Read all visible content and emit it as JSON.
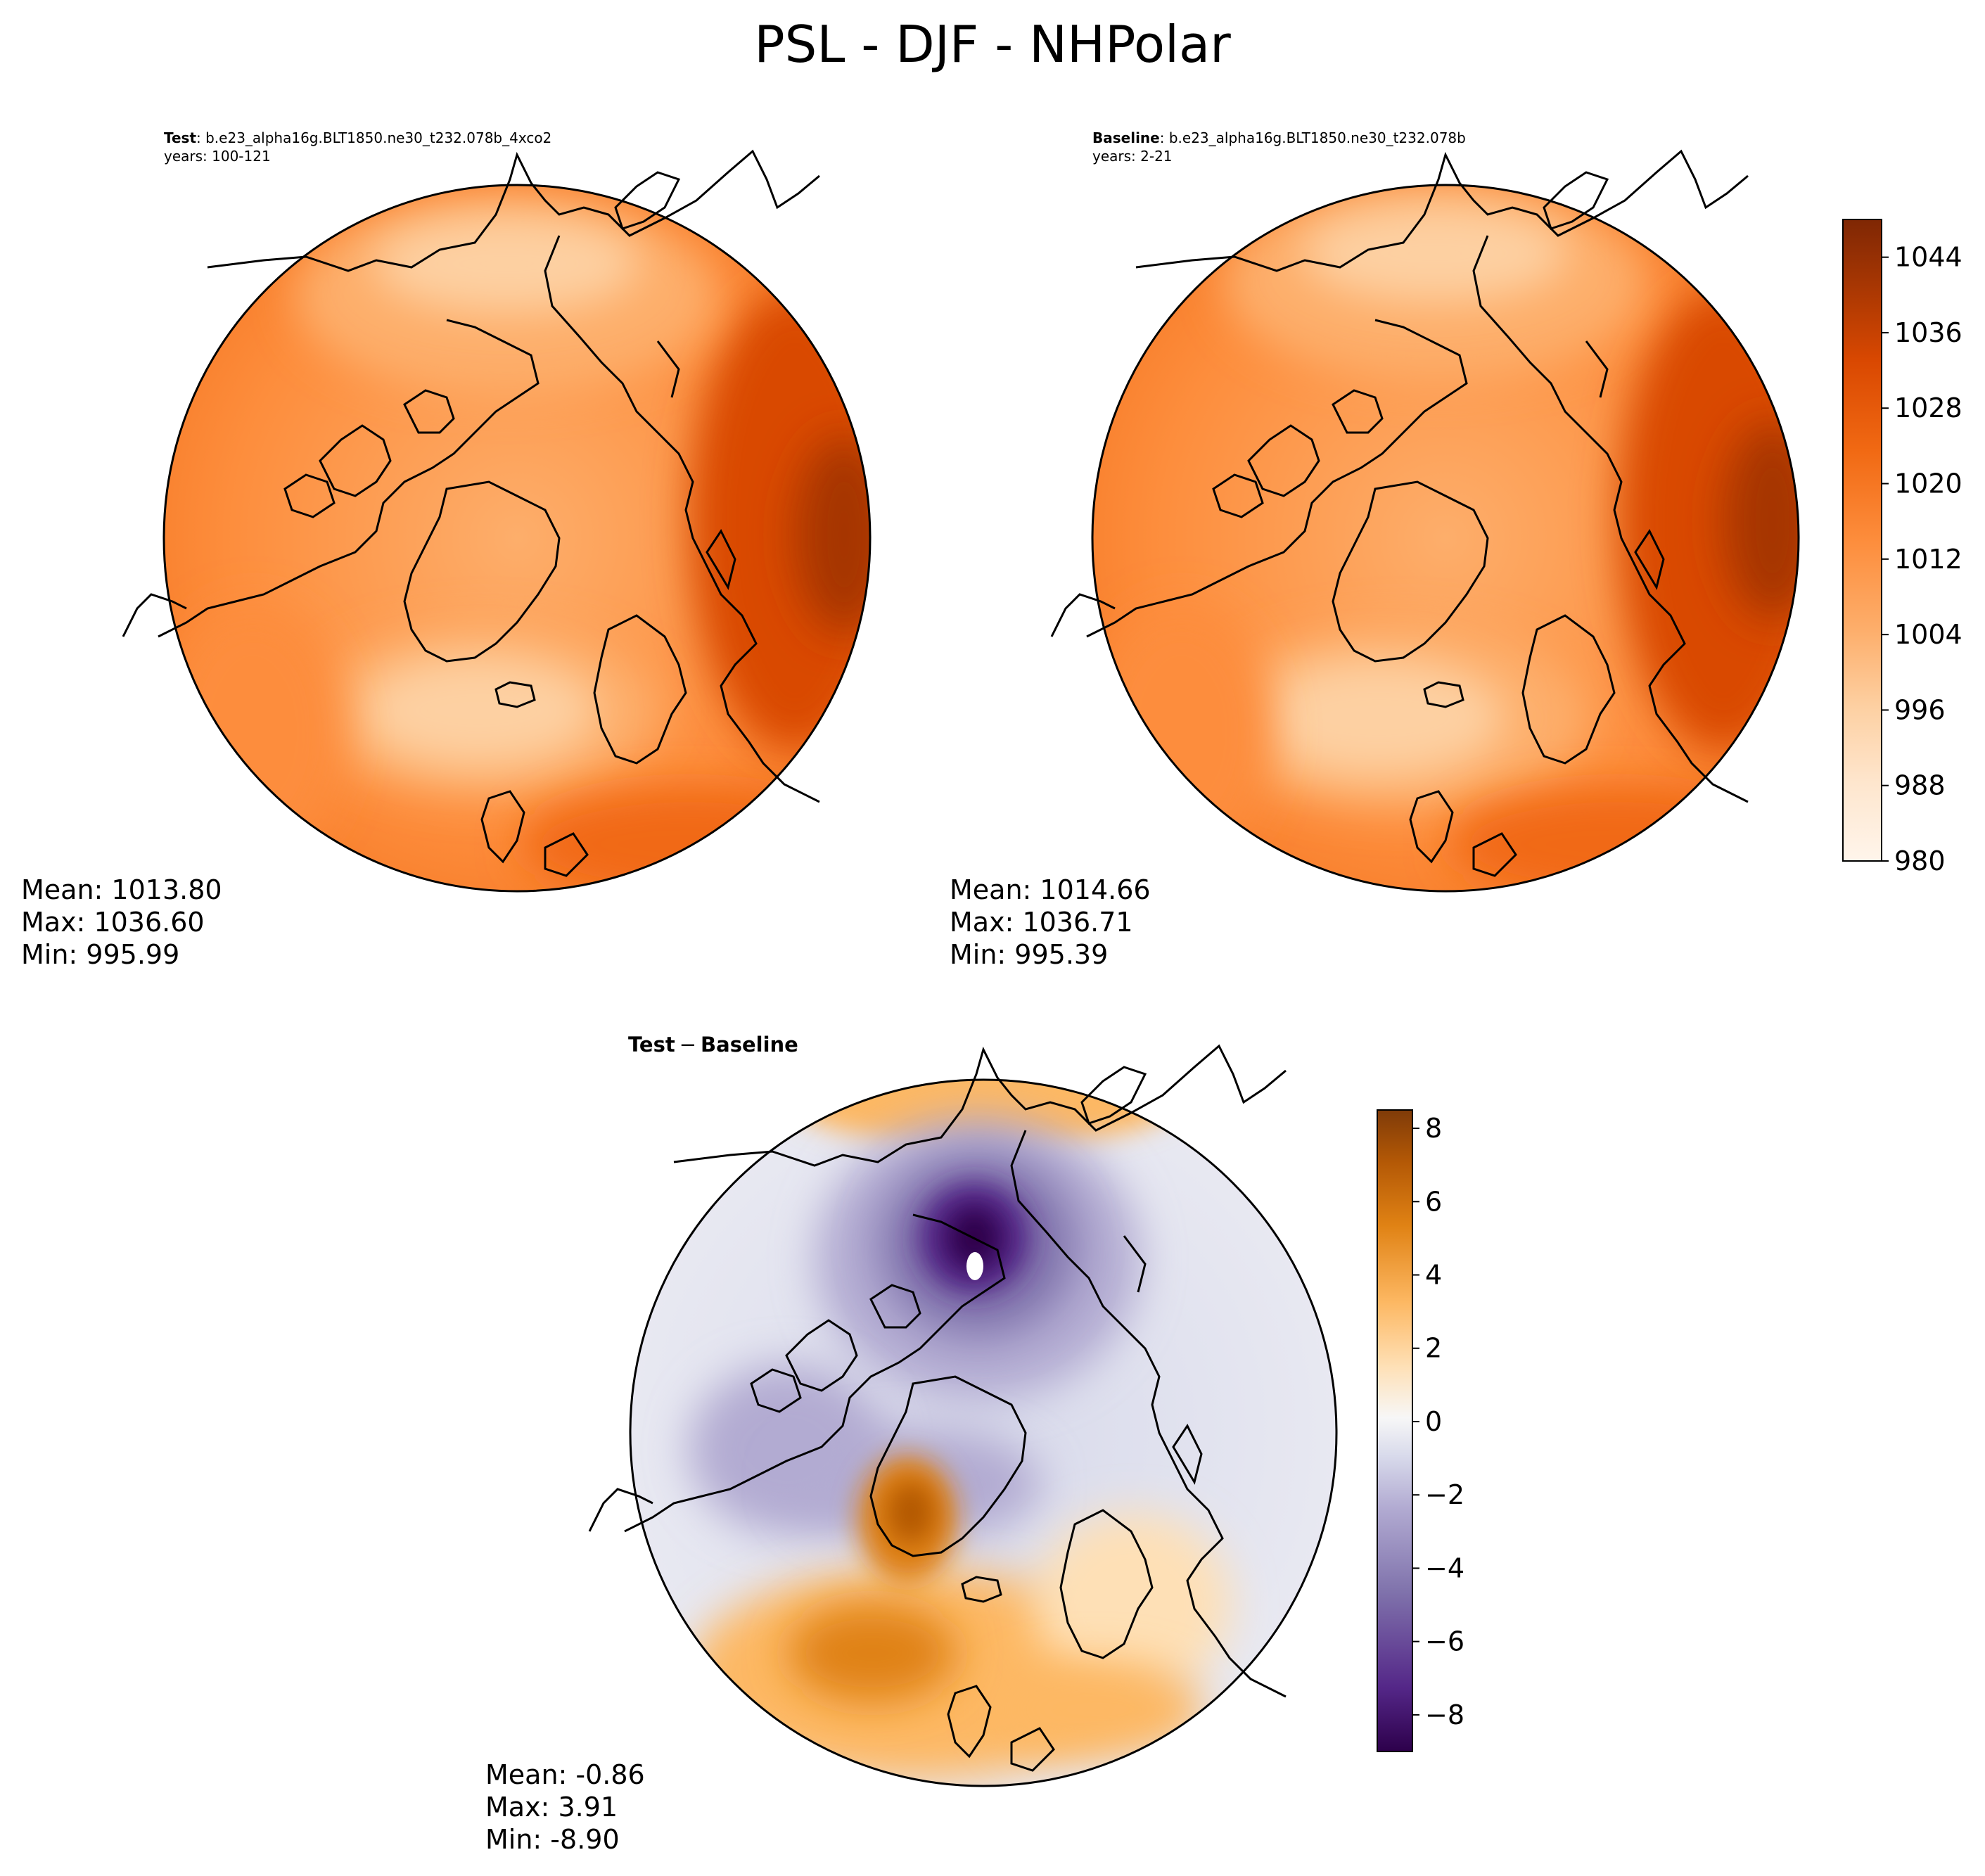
{
  "figure_title": "PSL - DJF - NHPolar",
  "panels": {
    "test": {
      "label": "Test",
      "case": ": b.e23_alpha16g.BLT1850.ne30_t232.078b_4xco2",
      "years": "years: 100-121",
      "stats": {
        "mean": "Mean: 1013.80",
        "max": "Max: 1036.60",
        "min": "Min: 995.99"
      }
    },
    "baseline": {
      "label": "Baseline",
      "case": ": b.e23_alpha16g.BLT1850.ne30_t232.078b",
      "years": "years: 2-21",
      "stats": {
        "mean": "Mean: 1014.66",
        "max": "Max: 1036.71",
        "min": "Min: 995.39"
      }
    },
    "diff": {
      "label_a": "Test",
      "minus": "−",
      "label_b": "Baseline",
      "stats": {
        "mean": "Mean: -0.86",
        "max": "Max:  3.91",
        "min": "Min: -8.90"
      }
    }
  },
  "chart_data": [
    {
      "type": "heatmap",
      "projection": "north-polar-stereographic",
      "variable": "PSL",
      "season": "DJF",
      "title": "Test : b.e23_alpha16g.BLT1850.ne30_t232.078b_4xco2",
      "years": "100-121",
      "mean": 1013.8,
      "max": 1036.6,
      "min": 995.99,
      "colormap": "Oranges",
      "colorbar": {
        "range": [
          980,
          1048
        ],
        "ticks": [
          980,
          988,
          996,
          1004,
          1012,
          1020,
          1028,
          1036,
          1044
        ]
      }
    },
    {
      "type": "heatmap",
      "projection": "north-polar-stereographic",
      "variable": "PSL",
      "season": "DJF",
      "title": "Baseline : b.e23_alpha16g.BLT1850.ne30_t232.078b",
      "years": "2-21",
      "mean": 1014.66,
      "max": 1036.71,
      "min": 995.39,
      "colormap": "Oranges",
      "colorbar": {
        "range": [
          980,
          1048
        ],
        "ticks": [
          980,
          988,
          996,
          1004,
          1012,
          1020,
          1028,
          1036,
          1044
        ]
      }
    },
    {
      "type": "heatmap",
      "projection": "north-polar-stereographic",
      "variable": "PSL",
      "season": "DJF",
      "title": "Test − Baseline",
      "mean": -0.86,
      "max": 3.91,
      "min": -8.9,
      "colormap": "PuOr_r",
      "colorbar": {
        "range": [
          -9,
          8.5
        ],
        "ticks": [
          -8,
          -6,
          -4,
          -2,
          0,
          2,
          4,
          6,
          8
        ],
        "tick_labels": [
          "−8",
          "−6",
          "−4",
          "−2",
          "0",
          "2",
          "4",
          "6",
          "8"
        ]
      }
    }
  ],
  "colors": {
    "oranges": [
      "#fff5eb",
      "#fee6ce",
      "#fdd0a2",
      "#fdae6b",
      "#fd8d3c",
      "#f16913",
      "#d94801",
      "#a63603",
      "#7f2704"
    ],
    "puor": [
      "#2d004b",
      "#542788",
      "#8073ac",
      "#b2abd2",
      "#d8daeb",
      "#f7f7f7",
      "#fee0b6",
      "#fdb863",
      "#e08214",
      "#b35806",
      "#7f3b08"
    ]
  }
}
